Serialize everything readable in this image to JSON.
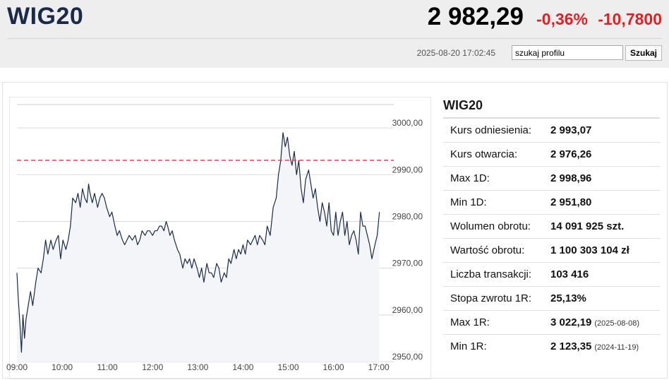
{
  "header": {
    "symbol": "WIG20",
    "price": "2 982,29",
    "change_percent": "-0,36%",
    "change_abs": "-10,7800",
    "timestamp": "2025-08-20 17:02:45",
    "search_value": "szukaj profilu",
    "search_button": "Szukaj"
  },
  "colors": {
    "negative": "#e31e24",
    "line": "#1c2a4a",
    "reference": "#e8434a"
  },
  "info": {
    "title": "WIG20",
    "rows": [
      {
        "label": "Kurs odniesienia:",
        "value": "2 993,07",
        "date": ""
      },
      {
        "label": "Kurs otwarcia:",
        "value": "2 976,26",
        "date": ""
      },
      {
        "label": "Max 1D:",
        "value": "2 998,96",
        "date": ""
      },
      {
        "label": "Min 1D:",
        "value": "2 951,80",
        "date": ""
      },
      {
        "label": "Wolumen obrotu:",
        "value": "14 091 925 szt.",
        "date": ""
      },
      {
        "label": "Wartość obrotu:",
        "value": "1 100 303 104 zł",
        "date": ""
      },
      {
        "label": "Liczba transakcji:",
        "value": "103 416",
        "date": ""
      },
      {
        "label": "Stopa zwrotu 1R:",
        "value": "25,13%",
        "date": ""
      },
      {
        "label": "Max 1R:",
        "value": "3 022,19",
        "date": "(2025-08-08)"
      },
      {
        "label": "Min 1R:",
        "value": "2 123,35",
        "date": "(2024-11-19)"
      }
    ]
  },
  "chart_data": {
    "type": "area",
    "reference_value": 2993.07,
    "reference_style": "dashed",
    "ylim": [
      2950,
      3005
    ],
    "yticks": [
      2950,
      2960,
      2970,
      2980,
      2990,
      3000
    ],
    "ytick_labels": [
      "2950,00",
      "2960,00",
      "2970,00",
      "2980,00",
      "2990,00",
      "3000,00"
    ],
    "xlim": [
      "09:00",
      "17:05"
    ],
    "xticks": [
      "09:00",
      "10:00",
      "11:00",
      "12:00",
      "13:00",
      "14:00",
      "15:00",
      "16:00",
      "17:00"
    ],
    "grid": true,
    "series": [
      {
        "x": [
          "09:00",
          "09:02",
          "09:04",
          "09:06",
          "09:08",
          "09:10",
          "09:12",
          "09:15",
          "09:18",
          "09:21",
          "09:25",
          "09:28",
          "09:32",
          "09:35",
          "09:38",
          "09:41",
          "09:45",
          "09:48",
          "09:52",
          "09:55",
          "09:58",
          "10:01",
          "10:05",
          "10:08",
          "10:11",
          "10:14",
          "10:18",
          "10:21",
          "10:24",
          "10:27",
          "10:30",
          "10:33",
          "10:35",
          "10:37",
          "10:40",
          "10:43",
          "10:47",
          "10:50",
          "10:53",
          "10:56",
          "10:59",
          "11:03",
          "11:06",
          "11:10",
          "11:13",
          "11:16",
          "11:20",
          "11:23",
          "11:26",
          "11:29",
          "11:33",
          "11:37",
          "11:40",
          "11:43",
          "11:46",
          "11:50",
          "11:53",
          "11:56",
          "12:00",
          "12:03",
          "12:06",
          "12:09",
          "12:12",
          "12:15",
          "12:18",
          "12:20",
          "12:23",
          "12:26",
          "12:29",
          "12:33",
          "12:36",
          "12:40",
          "12:43",
          "12:46",
          "12:49",
          "12:52",
          "12:55",
          "12:59",
          "13:02",
          "13:05",
          "13:08",
          "13:12",
          "13:15",
          "13:18",
          "13:21",
          "13:25",
          "13:28",
          "13:31",
          "13:35",
          "13:38",
          "13:41",
          "13:44",
          "13:48",
          "13:51",
          "13:54",
          "13:57",
          "14:00",
          "14:03",
          "14:06",
          "14:10",
          "14:13",
          "14:16",
          "14:19",
          "14:22",
          "14:26",
          "14:29",
          "14:32",
          "14:36",
          "14:40",
          "14:44",
          "14:47",
          "14:50",
          "14:53",
          "14:56",
          "14:59",
          "15:02",
          "15:05",
          "15:08",
          "15:11",
          "15:14",
          "15:17",
          "15:20",
          "15:23",
          "15:27",
          "15:30",
          "15:33",
          "15:36",
          "15:39",
          "15:42",
          "15:45",
          "15:48",
          "15:51",
          "15:54",
          "15:57",
          "16:00",
          "16:03",
          "16:06",
          "16:09",
          "16:12",
          "16:15",
          "16:18",
          "16:21",
          "16:24",
          "16:27",
          "16:30",
          "16:33",
          "16:36",
          "16:39",
          "16:42",
          "16:45",
          "16:48",
          "16:51",
          "16:55",
          "16:58",
          "17:01"
        ],
        "y": [
          2969,
          2963,
          2958,
          2952,
          2960,
          2955,
          2959,
          2962,
          2965,
          2962,
          2967,
          2970,
          2969,
          2972,
          2976,
          2973,
          2976,
          2974,
          2976,
          2977,
          2972,
          2976,
          2974,
          2976,
          2979,
          2985,
          2984,
          2986,
          2983,
          2987,
          2985,
          2984,
          2988,
          2986,
          2984,
          2986,
          2983,
          2985,
          2986,
          2985,
          2983,
          2981,
          2982,
          2979,
          2977,
          2978,
          2976,
          2975,
          2976,
          2977,
          2976,
          2977,
          2975,
          2976,
          2978,
          2977,
          2978,
          2978,
          2977,
          2978,
          2978,
          2979,
          2979,
          2978,
          2980,
          2979,
          2977,
          2978,
          2976,
          2974,
          2973,
          2970,
          2972,
          2971,
          2972,
          2970,
          2972,
          2970,
          2968,
          2970,
          2967,
          2971,
          2969,
          2969,
          2968,
          2971,
          2970,
          2967,
          2969,
          2968,
          2972,
          2971,
          2974,
          2972,
          2974,
          2973,
          2975,
          2973,
          2976,
          2975,
          2976,
          2977,
          2975,
          2977,
          2976,
          2975,
          2979,
          2977,
          2983,
          2985,
          2990,
          2993,
          2999,
          2996,
          2998,
          2994,
          2992,
          2995,
          2990,
          2993,
          2987,
          2984,
          2989,
          2991,
          2988,
          2985,
          2987,
          2983,
          2980,
          2984,
          2982,
          2979,
          2984,
          2978,
          2977,
          2982,
          2977,
          2980,
          2982,
          2977,
          2980,
          2975,
          2977,
          2978,
          2976,
          2973,
          2982,
          2979,
          2979,
          2977,
          2975,
          2972,
          2975,
          2977,
          2982
        ]
      }
    ]
  }
}
